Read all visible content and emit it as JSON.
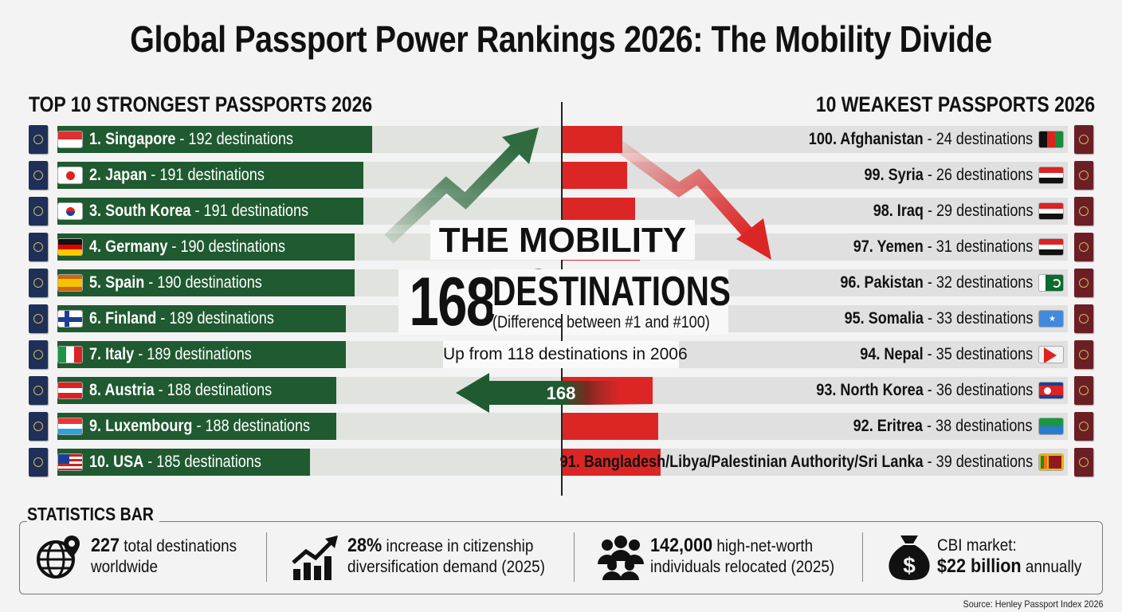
{
  "title": "Global Passport Power Rankings 2026: The Mobility Divide",
  "left_heading": "TOP 10 STRONGEST PASSPORTS 2026",
  "right_heading": "10 WEAKEST PASSPORTS 2026",
  "gap": {
    "title": "THE MOBILITY GAP",
    "number": "168",
    "unit": "DESTINATIONS",
    "note": "(Difference between #1 and #100)",
    "sub": "Up from 118 destinations in 2006",
    "arrow_label": "168"
  },
  "colors": {
    "strong": "#1f5a30",
    "weak": "#dc2626",
    "passport_strong": "#1e3058",
    "passport_weak": "#6b1f24"
  },
  "chart_data": [
    {
      "type": "bar",
      "title": "TOP 10 STRONGEST PASSPORTS 2026",
      "categories": [
        "1. Singapore",
        "2. Japan",
        "3. South Korea",
        "4. Germany",
        "5. Spain",
        "6. Finland",
        "7. Italy",
        "8. Austria",
        "9. Luxembourg",
        "10. USA"
      ],
      "values": [
        192,
        191,
        191,
        190,
        190,
        189,
        189,
        188,
        188,
        185
      ],
      "labels": [
        "1. Singapore",
        "2. Japan",
        "3. South Korea",
        "4. Germany",
        "5. Spain",
        "6. Finland",
        "7. Italy",
        "8. Austria",
        "9. Luxembourg",
        "10. USA"
      ],
      "value_texts": [
        " - 192 destinations",
        " - 191 destinations",
        " - 191 destinations",
        " - 190 destinations",
        " - 190 destinations",
        " - 189 destinations",
        " - 189 destinations",
        " - 188 destinations",
        " - 188 destinations",
        " - 185 destinations"
      ],
      "flags": [
        "singapore-flag-icon",
        "japan-flag-icon",
        "south-korea-flag-icon",
        "germany-flag-icon",
        "spain-flag-icon",
        "finland-flag-icon",
        "italy-flag-icon",
        "austria-flag-icon",
        "luxembourg-flag-icon",
        "usa-flag-icon"
      ]
    },
    {
      "type": "bar",
      "title": "10 WEAKEST PASSPORTS 2026",
      "categories": [
        "100. Afghanistan",
        "99. Syria",
        "98. Iraq",
        "97. Yemen",
        "96. Pakistan",
        "95. Somalia",
        "94. Nepal",
        "93. North Korea",
        "92. Eritrea",
        "91. Bangladesh/Libya/Palestinian Authority/Sri Lanka"
      ],
      "values": [
        24,
        26,
        29,
        31,
        32,
        33,
        35,
        36,
        38,
        39
      ],
      "labels": [
        "100. Afghanistan",
        "99. Syria",
        "98. Iraq",
        "97. Yemen",
        "96. Pakistan",
        "95. Somalia",
        "94. Nepal",
        "93. North Korea",
        "92. Eritrea",
        "91. Bangladesh/Libya/Palestinian Authority/Sri Lanka"
      ],
      "value_texts": [
        " - 24 destinations",
        " - 26 destinations",
        " - 29 destinations",
        " - 31 destinations",
        " - 32 destinations",
        " - 33 destinations",
        " - 35 destinations",
        " - 36 destinations",
        " - 38 destinations",
        " - 39 destinations"
      ],
      "flags": [
        "afghanistan-flag-icon",
        "syria-flag-icon",
        "iraq-flag-icon",
        "yemen-flag-icon",
        "pakistan-flag-icon",
        "somalia-flag-icon",
        "nepal-flag-icon",
        "north-korea-flag-icon",
        "eritrea-flag-icon",
        "sri-lanka-flag-icon"
      ]
    }
  ],
  "stats": {
    "title": "STATISTICS BAR",
    "items": [
      {
        "icon": "globe-pin-icon",
        "bold": "227",
        "text1": " total destinations",
        "text2": "worldwide"
      },
      {
        "icon": "growth-chart-icon",
        "bold": "28%",
        "text1": " increase in citizenship",
        "text2": "diversification demand (2025)"
      },
      {
        "icon": "people-group-icon",
        "bold": "142,000",
        "text1": " high-net-worth",
        "text2": "individuals relocated (2025)"
      },
      {
        "icon": "money-bag-icon",
        "text1": "CBI market:",
        "bold": "$22 billion",
        "text2": " annually"
      }
    ]
  },
  "source": "Source: Henley Passport Index 2026"
}
